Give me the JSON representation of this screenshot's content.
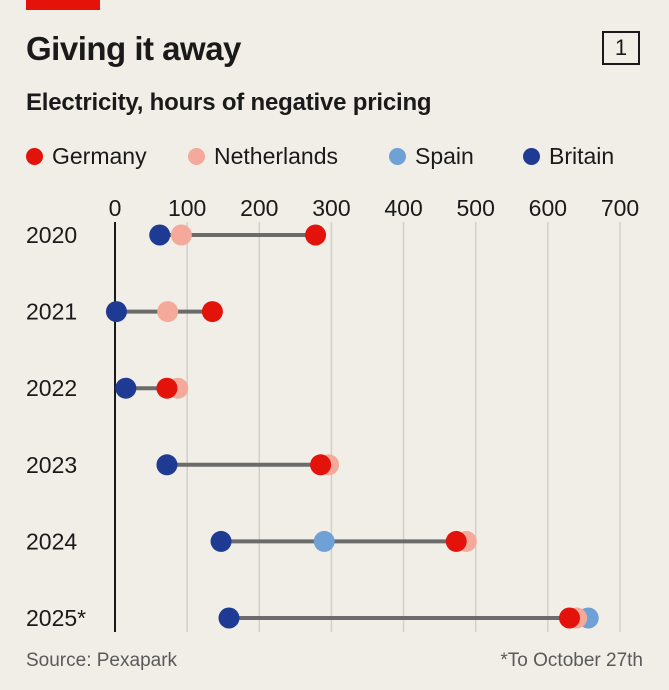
{
  "header": {
    "title": "Giving it away",
    "badge": "1"
  },
  "chart_data": {
    "type": "dot-range",
    "title": "Giving it away",
    "subtitle": "Electricity, hours of negative pricing",
    "xlim": [
      0,
      700
    ],
    "xticks": [
      0,
      100,
      200,
      300,
      400,
      500,
      600,
      700
    ],
    "grid": true,
    "legend_position": "top",
    "categories": [
      "2020",
      "2021",
      "2022",
      "2023",
      "2024",
      "2025*"
    ],
    "series": [
      {
        "name": "Germany",
        "color": "#e3120b",
        "values": [
          278,
          135,
          72,
          285,
          473,
          630
        ]
      },
      {
        "name": "Netherlands",
        "color": "#f4a99a",
        "values": [
          92,
          73,
          87,
          296,
          487,
          640
        ]
      },
      {
        "name": "Spain",
        "color": "#6fa0d6",
        "values": [
          null,
          null,
          null,
          null,
          290,
          656
        ]
      },
      {
        "name": "Britain",
        "color": "#1f3a93",
        "values": [
          62,
          2,
          15,
          72,
          147,
          158
        ]
      }
    ],
    "source": "Source: Pexapark",
    "note": "*To October 27th"
  }
}
